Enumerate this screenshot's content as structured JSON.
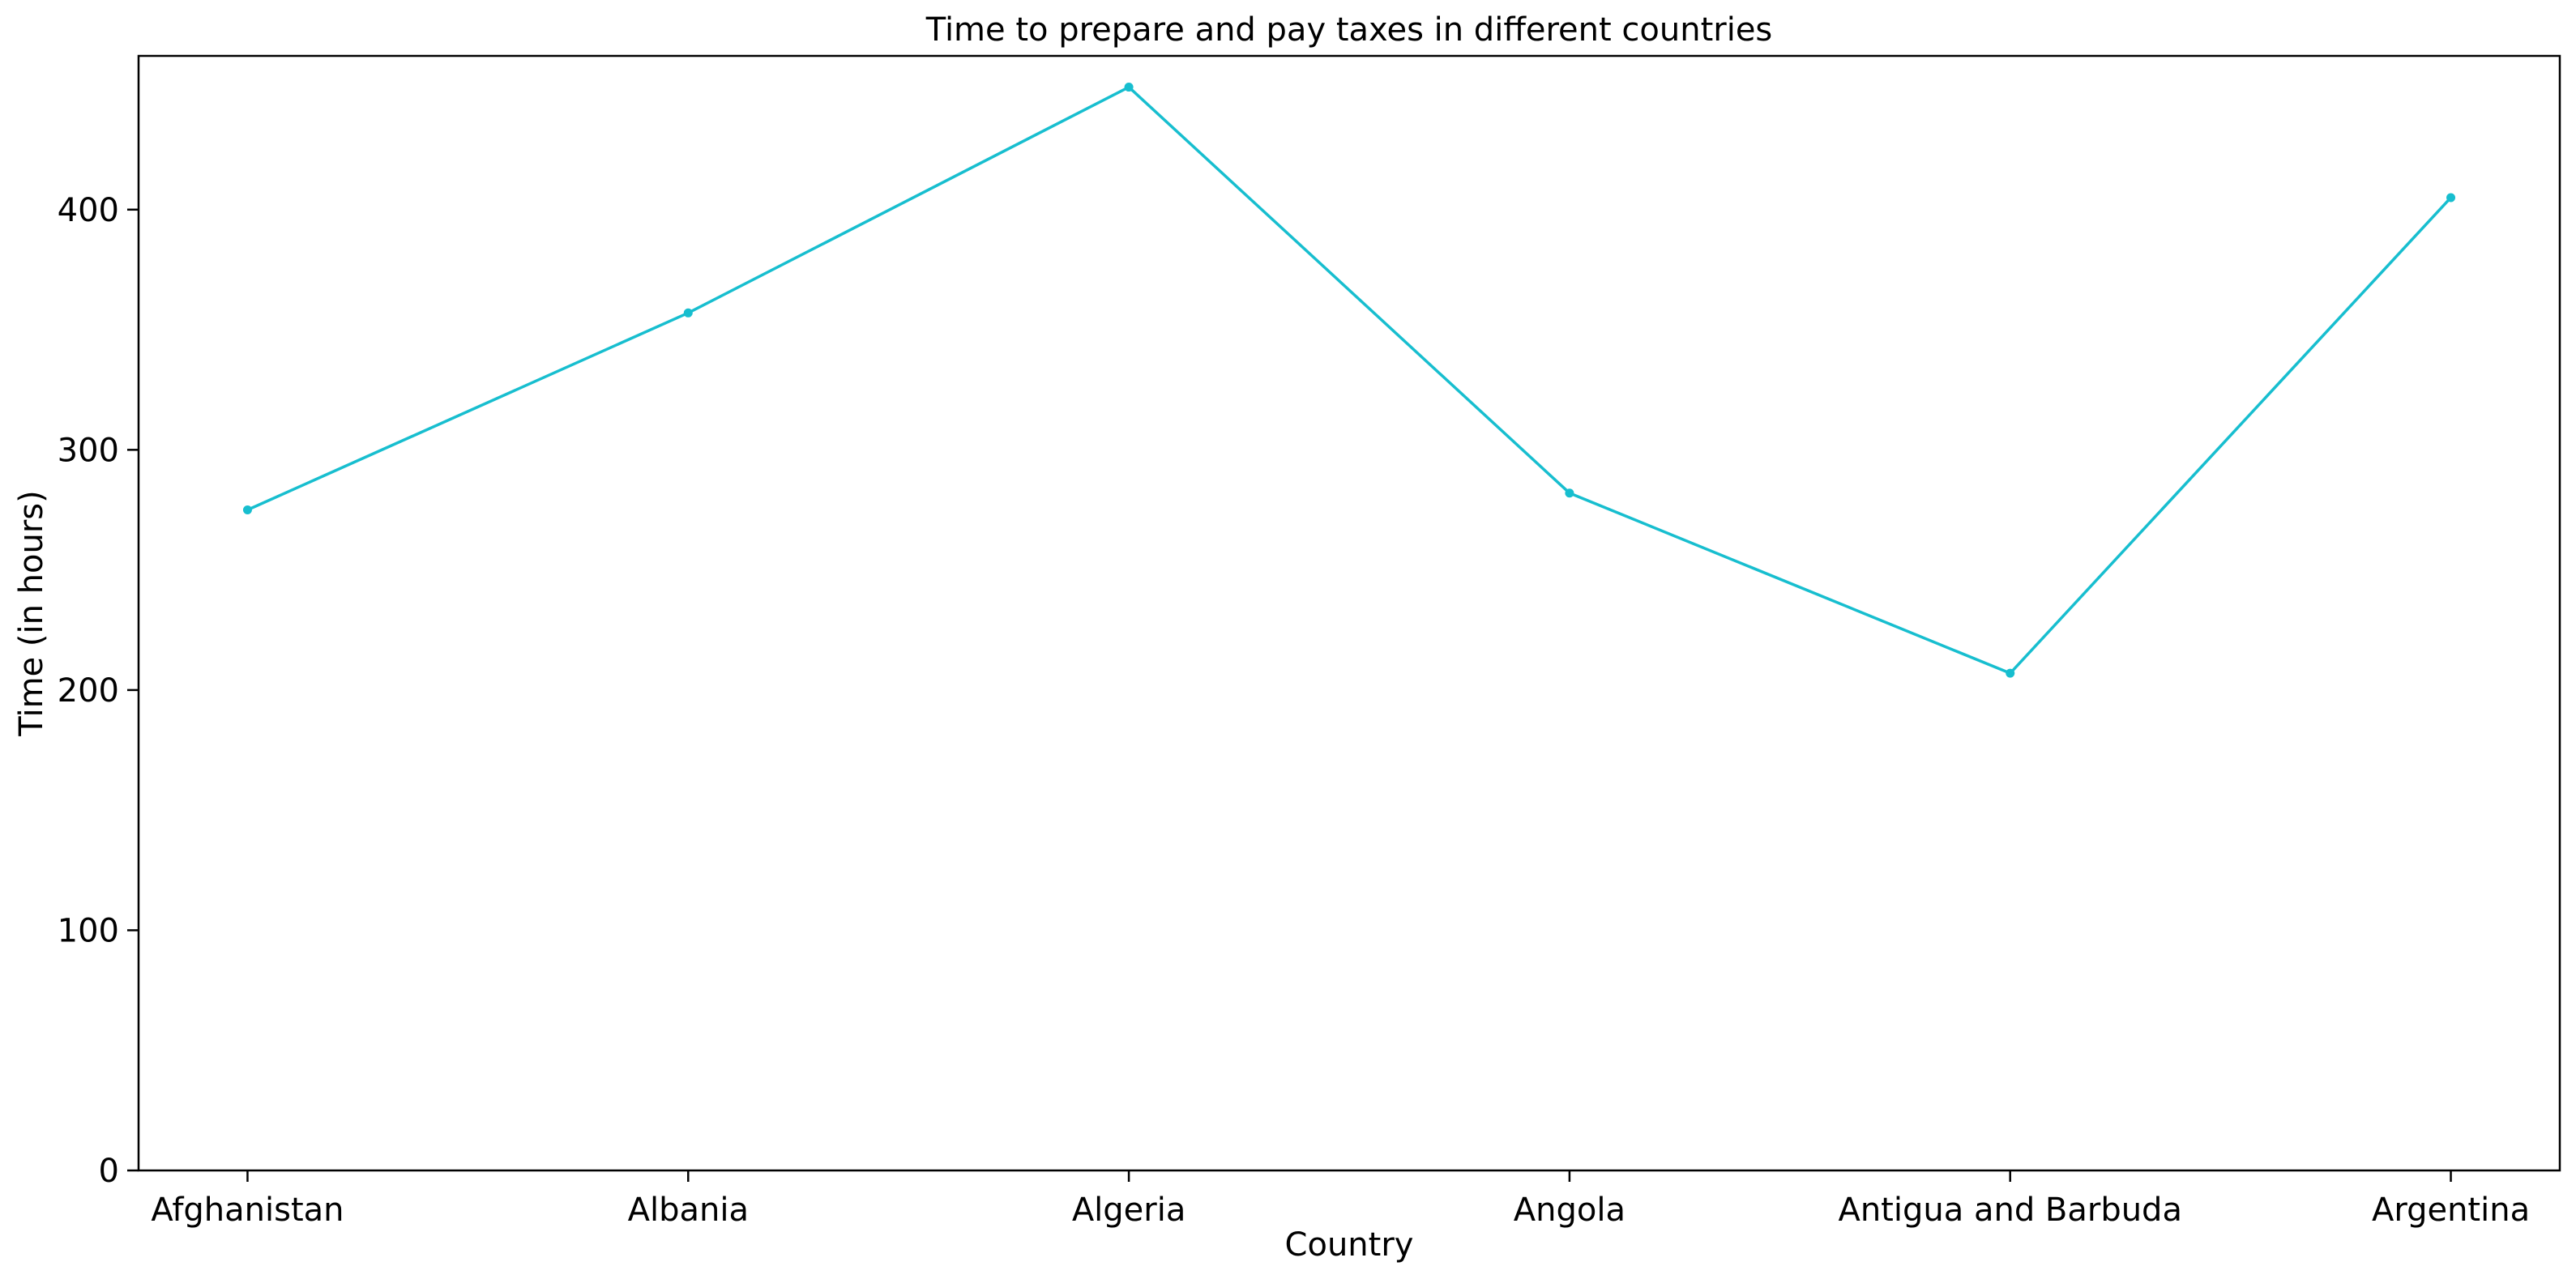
{
  "chart_data": {
    "type": "line",
    "title": "Time to prepare and pay taxes in different countries",
    "xlabel": "Country",
    "ylabel": "Time (in hours)",
    "categories": [
      "Afghanistan",
      "Albania",
      "Algeria",
      "Angola",
      "Antigua and Barbuda",
      "Argentina"
    ],
    "series": [
      {
        "values": [
          275,
          357,
          451,
          282,
          207,
          405
        ],
        "color": "#17becf"
      }
    ],
    "ylim": [
      0,
      464
    ],
    "yticks": [
      0,
      100,
      200,
      300,
      400
    ],
    "grid": false,
    "legend": "none"
  }
}
